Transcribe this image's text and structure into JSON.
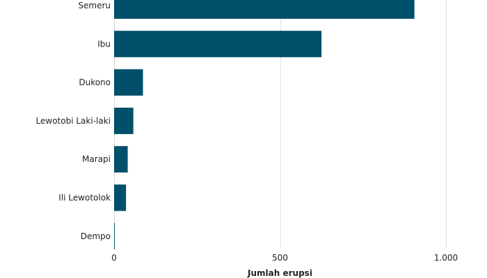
{
  "chart_data": {
    "type": "bar",
    "orientation": "horizontal",
    "categories": [
      "Semeru",
      "Ibu",
      "Dukono",
      "Lewotobi Laki-laki",
      "Marapi",
      "Ili Lewotolok",
      "Dempo"
    ],
    "values": [
      905,
      625,
      87,
      58,
      41,
      36,
      2
    ],
    "xlabel": "Jumlah erupsi",
    "ylabel": "",
    "xlim": [
      0,
      1000
    ],
    "xticks": [
      0,
      500,
      1000
    ],
    "xtick_labels": [
      "0",
      "500",
      "1.000"
    ],
    "grid": "vertical",
    "legend": "none",
    "bar_color": "#00506b"
  }
}
